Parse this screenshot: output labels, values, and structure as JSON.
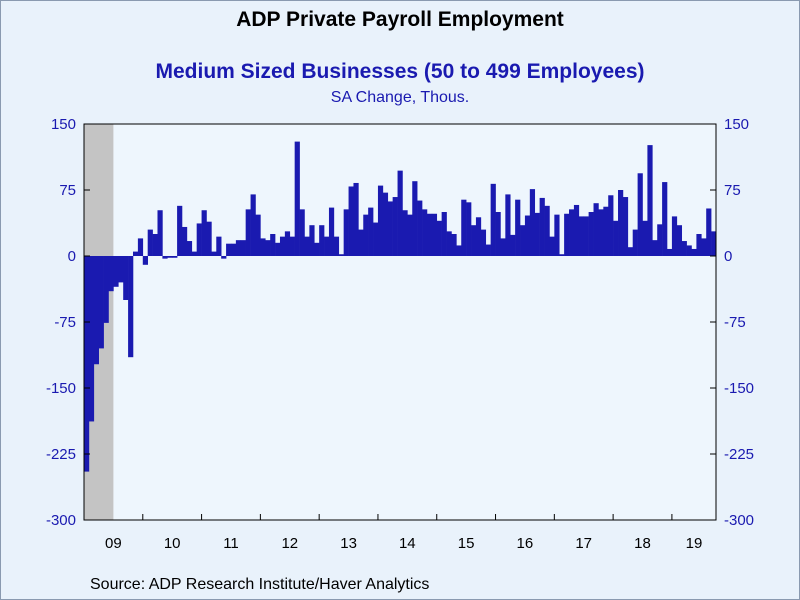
{
  "title": "ADP Private Payroll Employment",
  "subtitle": "Medium Sized Businesses (50 to 499 Employees)",
  "unit_label": "SA Change, Thous.",
  "source": "Source:  ADP Research Institute/Haver Analytics",
  "colors": {
    "bar": "#1a1ab0",
    "plot_bg": "#eef6fd",
    "recession": "#c4c4c4",
    "axis_text": "#1a1ab0"
  },
  "chart_data": {
    "type": "bar",
    "ylim": [
      -300,
      150
    ],
    "yticks": [
      150,
      75,
      0,
      -75,
      -150,
      -225,
      -300
    ],
    "ytick_labels_left": [
      "150",
      "75",
      "0",
      "-75",
      "-150",
      "-225",
      "-300"
    ],
    "ytick_labels_right": [
      "150",
      "75",
      "0",
      "-75",
      "-150",
      "-225",
      "-300"
    ],
    "xtick_labels": [
      "09",
      "10",
      "11",
      "12",
      "13",
      "14",
      "15",
      "16",
      "17",
      "18",
      "19"
    ],
    "recession_shading": {
      "start": "2009-01",
      "end": "2009-06"
    },
    "grid": false,
    "series": [
      {
        "start": "2009-01",
        "frequency": "monthly",
        "values": [
          -245,
          -188,
          -123,
          -105,
          -76,
          -40,
          -35,
          -30,
          -50,
          -115,
          5,
          20,
          -10,
          30,
          25,
          52,
          -3,
          -2,
          -2,
          57,
          33,
          17,
          5,
          37,
          52,
          39,
          5,
          22,
          -3,
          14,
          14,
          18,
          18,
          53,
          70,
          47,
          20,
          18,
          25,
          15,
          22,
          28,
          22,
          130,
          53,
          22,
          35,
          15,
          35,
          22,
          55,
          22,
          2,
          53,
          79,
          83,
          30,
          47,
          55,
          38,
          80,
          72,
          62,
          67,
          97,
          52,
          47,
          85,
          63,
          53,
          48,
          48,
          40,
          50,
          28,
          25,
          12,
          64,
          61,
          35,
          44,
          30,
          13,
          82,
          50,
          20,
          70,
          24,
          64,
          35,
          46,
          76,
          49,
          66,
          57,
          22,
          47,
          2,
          48,
          53,
          58,
          45,
          45,
          50,
          60,
          53,
          56,
          69,
          40,
          75,
          67,
          10,
          30,
          94,
          40,
          126,
          18,
          36,
          84,
          8,
          45,
          35,
          17,
          12,
          8,
          25,
          20,
          54,
          28
        ]
      }
    ]
  }
}
